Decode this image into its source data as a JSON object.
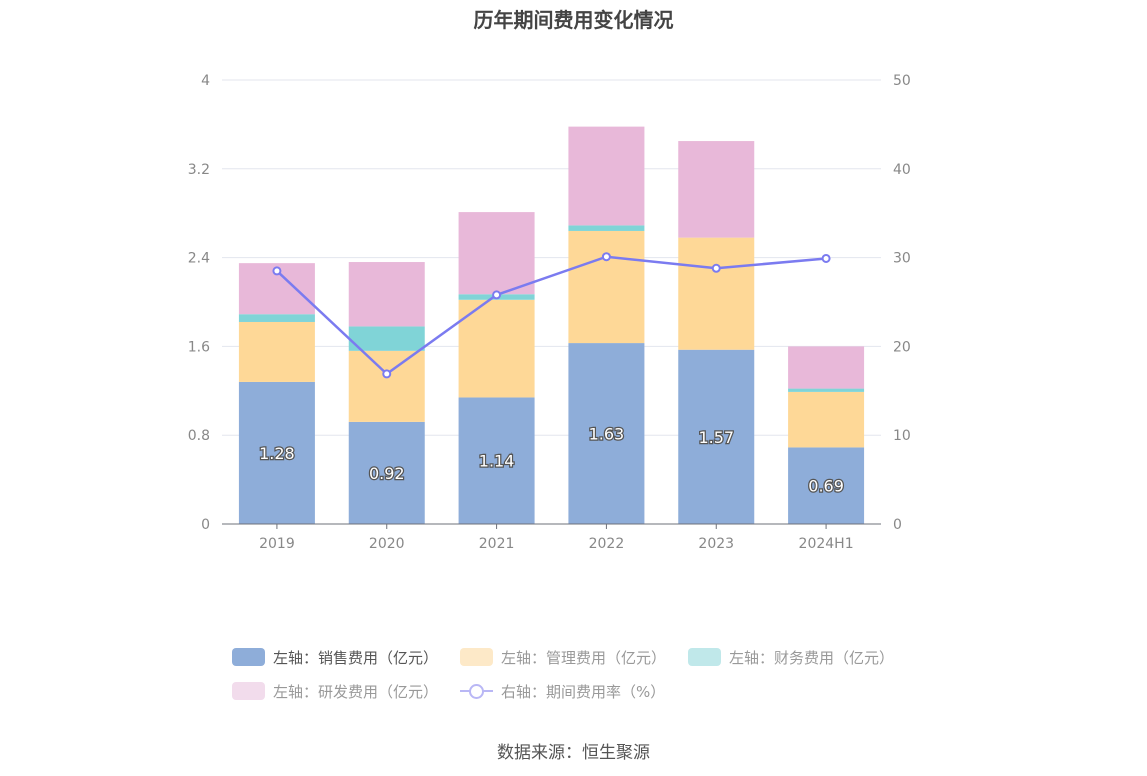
{
  "title": "历年期间费用变化情况",
  "source": "数据来源：恒生聚源",
  "chart_data": {
    "type": "bar",
    "stacked": true,
    "categories": [
      "2019",
      "2020",
      "2021",
      "2022",
      "2023",
      "2024H1"
    ],
    "left_axis": {
      "min": 0,
      "max": 4,
      "ticks": [
        "0",
        "0.8",
        "1.6",
        "2.4",
        "3.2",
        "4"
      ]
    },
    "right_axis": {
      "min": 0,
      "max": 50,
      "ticks": [
        "0",
        "10",
        "20",
        "30",
        "40",
        "50"
      ]
    },
    "grid": true,
    "legend_position": "bottom",
    "series": [
      {
        "name": "左轴：销售费用（亿元）",
        "type": "bar",
        "color": "#8eadd9",
        "values": [
          1.28,
          0.92,
          1.14,
          1.63,
          1.57,
          0.69
        ],
        "labels": [
          "1.28",
          "0.92",
          "1.14",
          "1.63",
          "1.57",
          "0.69"
        ]
      },
      {
        "name": "左轴：管理费用（亿元）",
        "type": "bar",
        "color": "#fed897",
        "values": [
          0.54,
          0.64,
          0.88,
          1.01,
          1.01,
          0.5
        ]
      },
      {
        "name": "左轴：财务费用（亿元）",
        "type": "bar",
        "color": "#80d4d7",
        "values": [
          0.07,
          0.22,
          0.05,
          0.05,
          0.0,
          0.03
        ]
      },
      {
        "name": "左轴：研发费用（亿元）",
        "type": "bar",
        "color": "#e8b8d9",
        "values": [
          0.46,
          0.58,
          0.74,
          0.89,
          0.87,
          0.38
        ]
      },
      {
        "name": "右轴：期间费用率（%）",
        "type": "line",
        "axis": "right",
        "color": "#7b7bf0",
        "values": [
          28.5,
          16.9,
          25.8,
          30.1,
          28.8,
          29.9
        ]
      }
    ]
  },
  "legend": {
    "row1": [
      {
        "label": "左轴：销售费用（亿元）",
        "color": "#8eadd9"
      },
      {
        "label": "左轴：管理费用（亿元）",
        "color": "#fde9c8"
      },
      {
        "label": "左轴：财务费用（亿元）",
        "color": "#c0e8ea"
      }
    ],
    "row2": [
      {
        "label": "左轴：研发费用（亿元）",
        "color": "#f2dcec"
      },
      {
        "label": "右轴：期间费用率（%）",
        "color": "#b9b7f5"
      }
    ]
  }
}
